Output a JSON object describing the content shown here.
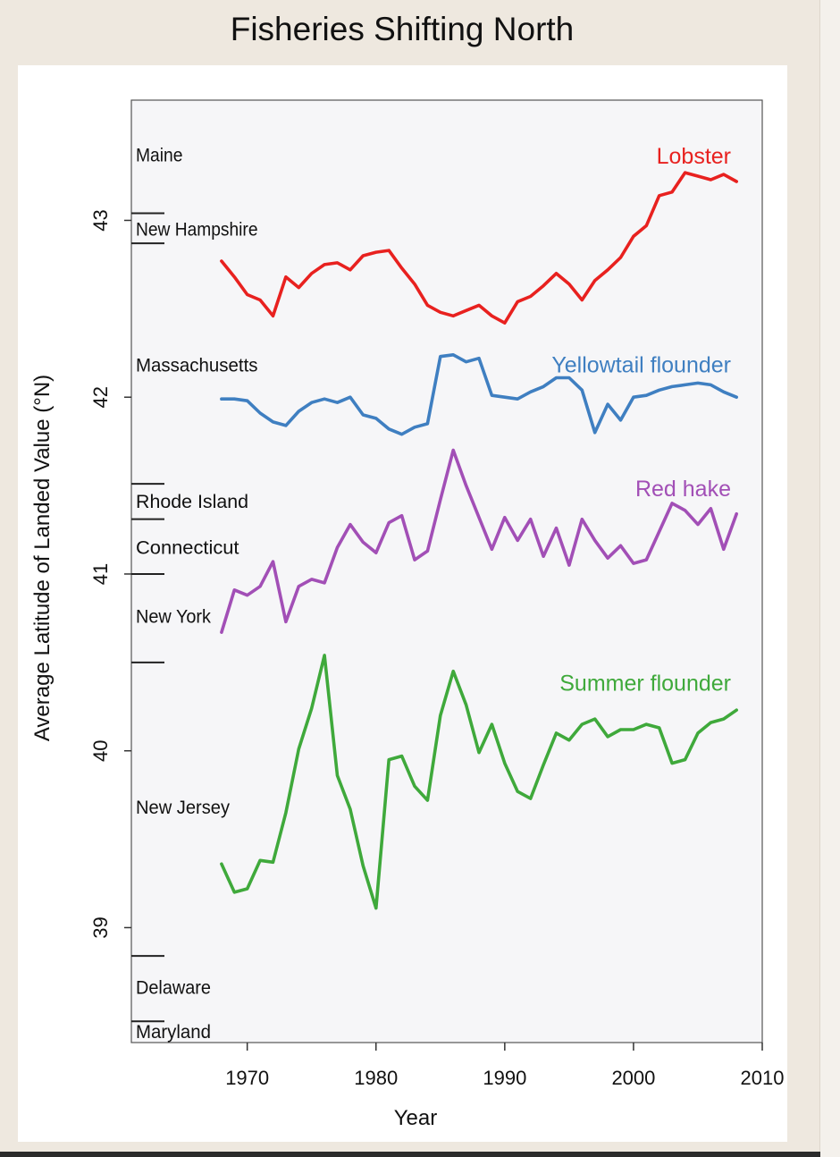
{
  "title": "Fisheries Shifting North",
  "chart_data": {
    "type": "line",
    "xlabel": "Year",
    "ylabel": "Average Latitude of Landed Value (°N)",
    "xlim": [
      1961,
      2010
    ],
    "ylim": [
      38.35,
      43.68
    ],
    "xticks": [
      1970,
      1980,
      1990,
      2000,
      2010
    ],
    "yticks": [
      39,
      40,
      41,
      42,
      43
    ],
    "grid": false,
    "states": [
      {
        "name": "Maine",
        "lat": 43.37,
        "boundary": null
      },
      {
        "name": "New Hampshire",
        "lat": 42.95,
        "boundary": 43.04
      },
      {
        "name": "Massachusetts",
        "lat": 42.18,
        "boundary": 42.87
      },
      {
        "name": "Rhode Island",
        "lat": 41.41,
        "boundary": 41.51
      },
      {
        "name": "Connecticut",
        "lat": 41.15,
        "boundary": 41.31
      },
      {
        "name": "New York",
        "lat": 40.76,
        "boundary": 41.0
      },
      {
        "name": "New Jersey",
        "lat": 39.68,
        "boundary": 40.5
      },
      {
        "name": "Delaware",
        "lat": 38.66,
        "boundary": 38.84
      },
      {
        "name": "Maryland",
        "lat": 38.41,
        "boundary": 38.47
      }
    ],
    "series": [
      {
        "name": "Lobster",
        "color": "#e8211f",
        "x": [
          1968,
          1969,
          1970,
          1971,
          1972,
          1973,
          1974,
          1975,
          1976,
          1977,
          1978,
          1979,
          1980,
          1981,
          1982,
          1983,
          1984,
          1985,
          1986,
          1987,
          1988,
          1989,
          1990,
          1991,
          1992,
          1993,
          1994,
          1995,
          1996,
          1997,
          1998,
          1999,
          2000,
          2001,
          2002,
          2003,
          2004,
          2005,
          2006,
          2007,
          2008
        ],
        "y": [
          42.77,
          42.68,
          42.58,
          42.55,
          42.46,
          42.68,
          42.62,
          42.7,
          42.75,
          42.76,
          42.72,
          42.8,
          42.82,
          42.83,
          42.73,
          42.64,
          42.52,
          42.48,
          42.46,
          42.49,
          42.52,
          42.46,
          42.42,
          42.54,
          42.57,
          42.63,
          42.7,
          42.64,
          42.55,
          42.66,
          42.72,
          42.79,
          42.91,
          42.97,
          43.14,
          43.16,
          43.27,
          43.25,
          43.23,
          43.26,
          43.22
        ]
      },
      {
        "name": "Yellowtail flounder",
        "color": "#3f7fc1",
        "x": [
          1968,
          1969,
          1970,
          1971,
          1972,
          1973,
          1974,
          1975,
          1976,
          1977,
          1978,
          1979,
          1980,
          1981,
          1982,
          1983,
          1984,
          1985,
          1986,
          1987,
          1988,
          1989,
          1990,
          1991,
          1992,
          1993,
          1994,
          1995,
          1996,
          1997,
          1998,
          1999,
          2000,
          2001,
          2002,
          2003,
          2004,
          2005,
          2006,
          2007,
          2008
        ],
        "y": [
          41.99,
          41.99,
          41.98,
          41.91,
          41.86,
          41.84,
          41.92,
          41.97,
          41.99,
          41.97,
          42.0,
          41.9,
          41.88,
          41.82,
          41.79,
          41.83,
          41.85,
          42.23,
          42.24,
          42.2,
          42.22,
          42.01,
          42.0,
          41.99,
          42.03,
          42.06,
          42.11,
          42.11,
          42.04,
          41.8,
          41.96,
          41.87,
          42.0,
          42.01,
          42.04,
          42.06,
          42.07,
          42.08,
          42.07,
          42.03,
          42.0
        ]
      },
      {
        "name": "Red hake",
        "color": "#a24fb6",
        "x": [
          1968,
          1969,
          1970,
          1971,
          1972,
          1973,
          1974,
          1975,
          1976,
          1977,
          1978,
          1979,
          1980,
          1981,
          1982,
          1983,
          1984,
          1985,
          1986,
          1987,
          1988,
          1989,
          1990,
          1991,
          1992,
          1993,
          1994,
          1995,
          1996,
          1997,
          1998,
          1999,
          2000,
          2001,
          2002,
          2003,
          2004,
          2005,
          2006,
          2007,
          2008
        ],
        "y": [
          40.67,
          40.91,
          40.88,
          40.93,
          41.07,
          40.73,
          40.93,
          40.97,
          40.95,
          41.15,
          41.28,
          41.18,
          41.12,
          41.29,
          41.33,
          41.08,
          41.13,
          41.42,
          41.7,
          41.5,
          41.32,
          41.14,
          41.32,
          41.19,
          41.31,
          41.1,
          41.26,
          41.05,
          41.31,
          41.19,
          41.09,
          41.16,
          41.06,
          41.08,
          41.24,
          41.4,
          41.36,
          41.28,
          41.37,
          41.14,
          41.34
        ]
      },
      {
        "name": "Summer flounder",
        "color": "#3fa93b",
        "x": [
          1968,
          1969,
          1970,
          1971,
          1972,
          1973,
          1974,
          1975,
          1976,
          1977,
          1978,
          1979,
          1980,
          1981,
          1982,
          1983,
          1984,
          1985,
          1986,
          1987,
          1988,
          1989,
          1990,
          1991,
          1992,
          1993,
          1994,
          1995,
          1996,
          1997,
          1998,
          1999,
          2000,
          2001,
          2002,
          2003,
          2004,
          2005,
          2006,
          2007,
          2008
        ],
        "y": [
          39.36,
          39.2,
          39.22,
          39.38,
          39.37,
          39.65,
          40.01,
          40.24,
          40.54,
          39.86,
          39.67,
          39.35,
          39.11,
          39.95,
          39.97,
          39.8,
          39.72,
          40.2,
          40.45,
          40.26,
          39.99,
          40.15,
          39.93,
          39.77,
          39.73,
          39.92,
          40.1,
          40.06,
          40.15,
          40.18,
          40.08,
          40.12,
          40.12,
          40.15,
          40.13,
          39.93,
          39.95,
          40.1,
          40.16,
          40.18,
          40.23
        ]
      }
    ]
  }
}
